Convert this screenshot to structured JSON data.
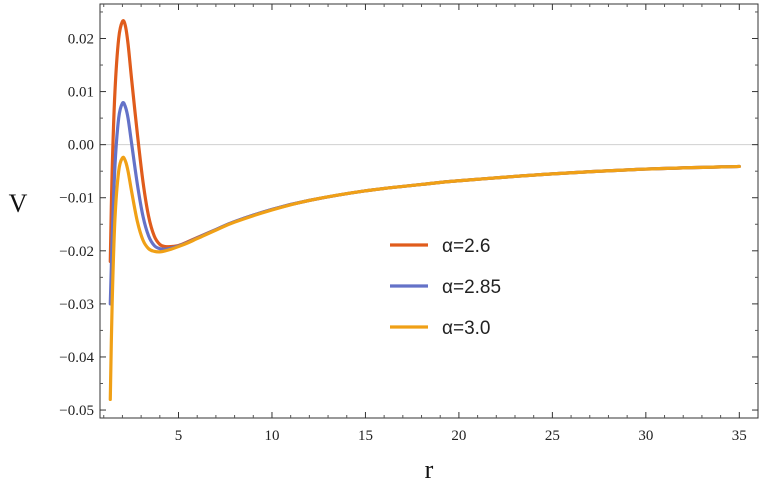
{
  "chart_data": {
    "type": "line",
    "xlabel": "r",
    "ylabel": "V",
    "xlim": [
      0.8,
      36
    ],
    "ylim": [
      -0.0515,
      0.0265
    ],
    "xticks": [
      {
        "value": 5,
        "label": "5"
      },
      {
        "value": 10,
        "label": "10"
      },
      {
        "value": 15,
        "label": "15"
      },
      {
        "value": 20,
        "label": "20"
      },
      {
        "value": 25,
        "label": "25"
      },
      {
        "value": 30,
        "label": "30"
      },
      {
        "value": 35,
        "label": "35"
      }
    ],
    "yticks": [
      {
        "value": 0.02,
        "label": "0.02"
      },
      {
        "value": 0.01,
        "label": "0.01"
      },
      {
        "value": 0.0,
        "label": "0.00"
      },
      {
        "value": -0.01,
        "label": "−0.01"
      },
      {
        "value": -0.02,
        "label": "−0.02"
      },
      {
        "value": -0.03,
        "label": "−0.03"
      },
      {
        "value": -0.04,
        "label": "−0.04"
      },
      {
        "value": -0.05,
        "label": "−0.05"
      }
    ],
    "legend_position": "center-right",
    "zero_line": true,
    "series": [
      {
        "name": "α=2.6",
        "color": "#e05c1c",
        "x": [
          1.35,
          1.45,
          1.6,
          1.8,
          2.0,
          2.15,
          2.3,
          2.5,
          2.8,
          3.1,
          3.4,
          3.7,
          4.0,
          4.3,
          4.6,
          5.0,
          5.5,
          6,
          7,
          8,
          10,
          12,
          15,
          18,
          20,
          25,
          30,
          35
        ],
        "y": [
          -0.022,
          -0.005,
          0.01,
          0.02,
          0.0232,
          0.0225,
          0.019,
          0.012,
          0.002,
          -0.007,
          -0.0135,
          -0.0172,
          -0.0188,
          -0.0192,
          -0.0192,
          -0.019,
          -0.0183,
          -0.0175,
          -0.016,
          -0.0145,
          -0.0122,
          -0.0105,
          -0.0087,
          -0.0075,
          -0.0068,
          -0.0055,
          -0.0046,
          -0.0041
        ]
      },
      {
        "name": "α=2.85",
        "color": "#6472c8",
        "x": [
          1.35,
          1.45,
          1.6,
          1.8,
          2.0,
          2.15,
          2.3,
          2.5,
          2.8,
          3.1,
          3.4,
          3.7,
          4.0,
          4.3,
          4.6,
          5.0,
          5.5,
          6,
          7,
          8,
          10,
          12,
          15,
          18,
          20,
          25,
          30,
          35
        ],
        "y": [
          -0.03,
          -0.018,
          -0.004,
          0.005,
          0.0078,
          0.0072,
          0.005,
          0.0,
          -0.0075,
          -0.0135,
          -0.0172,
          -0.019,
          -0.0196,
          -0.0197,
          -0.0195,
          -0.0191,
          -0.0184,
          -0.0176,
          -0.016,
          -0.0145,
          -0.0122,
          -0.0105,
          -0.0087,
          -0.0075,
          -0.0068,
          -0.0055,
          -0.0046,
          -0.0041
        ]
      },
      {
        "name": "α=3.0",
        "color": "#f0a016",
        "x": [
          1.35,
          1.45,
          1.6,
          1.8,
          2.0,
          2.15,
          2.3,
          2.5,
          2.8,
          3.1,
          3.4,
          3.7,
          4.0,
          4.3,
          4.6,
          5.0,
          5.5,
          6,
          7,
          8,
          10,
          12,
          15,
          18,
          20,
          25,
          30,
          35
        ],
        "y": [
          -0.048,
          -0.03,
          -0.014,
          -0.005,
          -0.0025,
          -0.003,
          -0.005,
          -0.009,
          -0.0145,
          -0.018,
          -0.0196,
          -0.0201,
          -0.0202,
          -0.02,
          -0.0197,
          -0.0192,
          -0.0185,
          -0.0177,
          -0.0161,
          -0.0146,
          -0.0123,
          -0.0105,
          -0.0087,
          -0.0075,
          -0.0068,
          -0.0055,
          -0.0046,
          -0.0041
        ]
      }
    ]
  }
}
